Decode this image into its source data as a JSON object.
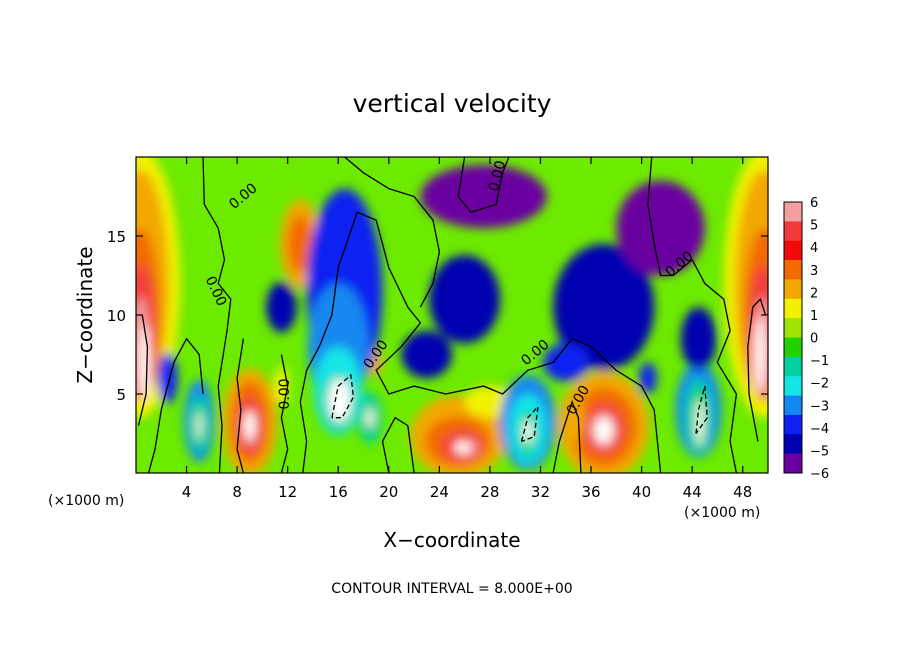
{
  "chart_data": {
    "type": "heatmap",
    "title": "vertical velocity",
    "xlabel": "X−coordinate",
    "ylabel": "Z−coordinate",
    "x_unit_left": "(×1000 m)",
    "x_unit_right": "(×1000 m)",
    "xlim": [
      0,
      50
    ],
    "ylim": [
      0,
      20
    ],
    "x_ticks": [
      4,
      8,
      12,
      16,
      20,
      24,
      28,
      32,
      36,
      40,
      44,
      48
    ],
    "x_tick_labels": [
      "4",
      "8",
      "12",
      "16",
      "20",
      "24",
      "28",
      "32",
      "36",
      "40",
      "44",
      "48"
    ],
    "y_ticks": [
      5,
      10,
      15
    ],
    "y_tick_labels": [
      "5",
      "10",
      "15"
    ],
    "contour_interval_text": "CONTOUR INTERVAL = 8.000E+00",
    "contour_label": "0.00",
    "colorbar": {
      "levels": [
        6,
        5,
        4,
        3,
        2,
        1,
        0,
        -1,
        -2,
        -3,
        -4,
        -5,
        -6
      ],
      "labels": [
        "6",
        "5",
        "4",
        "3",
        "2",
        "1",
        "0",
        "−1",
        "−2",
        "−3",
        "−4",
        "−5",
        "−6"
      ],
      "colors": [
        "#f4a0a0",
        "#f23c3c",
        "#f20a0a",
        "#f26a00",
        "#f2a800",
        "#f2f200",
        "#9ee600",
        "#22d200",
        "#00d0a0",
        "#14e6e6",
        "#1488f0",
        "#1020f0",
        "#0000b0",
        "#6a00a0"
      ]
    },
    "features": [
      {
        "x": 1.5,
        "z": 5.5,
        "w": -2,
        "kind": "updraft",
        "peak": 6.5
      },
      {
        "x": 5.0,
        "z": 3.0,
        "w": 6,
        "kind": "downdraft",
        "peak": -6.5
      },
      {
        "x": 8.5,
        "z": 3.0,
        "w": 6,
        "kind": "updraft",
        "peak": 6.5
      },
      {
        "x": 12.5,
        "z": 14.0,
        "w": 3,
        "kind": "updraft",
        "peak": 3.5
      },
      {
        "x": 16.0,
        "z": 4.5,
        "w": 8,
        "kind": "downdraft",
        "peak": -6.5
      },
      {
        "x": 18.0,
        "z": 3.0,
        "w": 4,
        "kind": "downdraft",
        "peak": -6.0
      },
      {
        "x": 25.0,
        "z": 2.5,
        "w": 8,
        "kind": "updraft",
        "peak": 6.0
      },
      {
        "x": 31.0,
        "z": 2.5,
        "w": 5,
        "kind": "downdraft",
        "peak": -6.5
      },
      {
        "x": 37.0,
        "z": 3.0,
        "w": 7,
        "kind": "updraft",
        "peak": 6.5
      },
      {
        "x": 44.5,
        "z": 3.5,
        "w": 4,
        "kind": "downdraft",
        "peak": -6.5
      },
      {
        "x": 48.8,
        "z": 7.5,
        "w": 2,
        "kind": "updraft",
        "peak": 6.5
      }
    ]
  }
}
